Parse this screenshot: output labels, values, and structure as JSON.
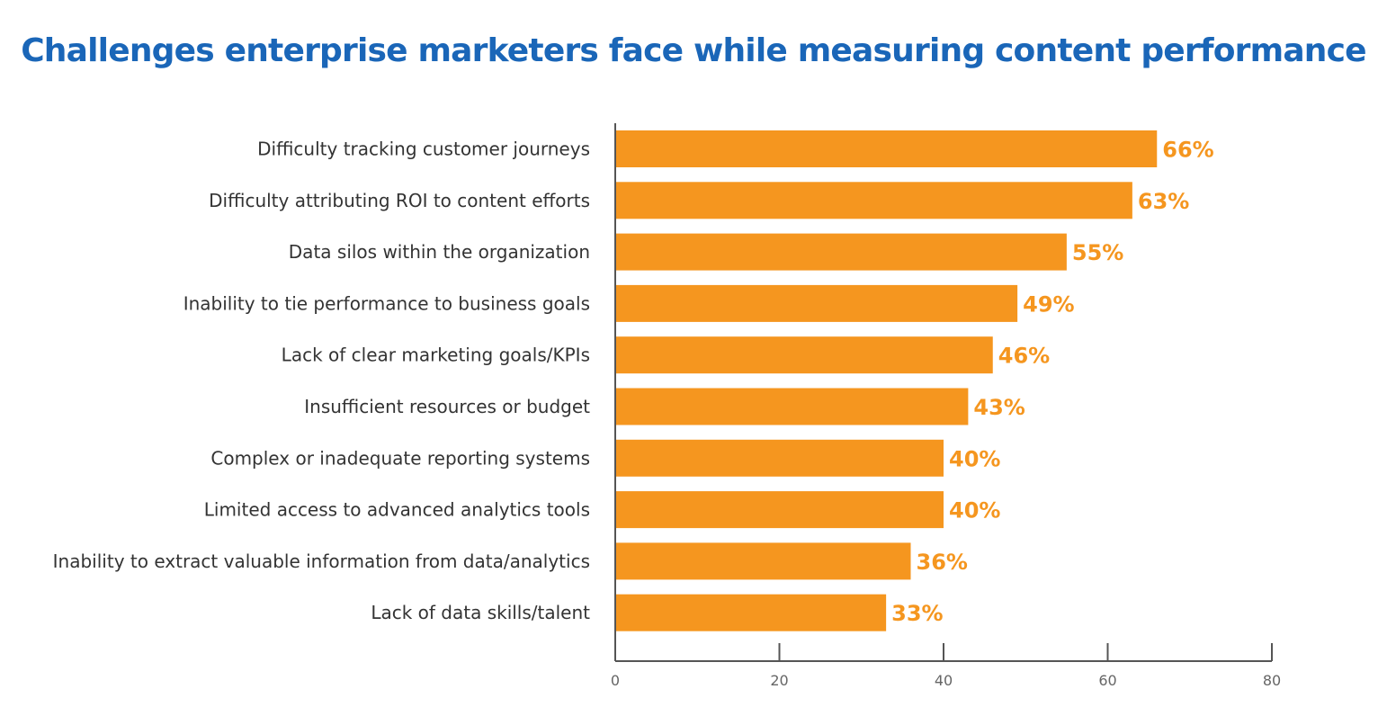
{
  "chart_data": {
    "type": "bar",
    "orientation": "horizontal",
    "title": "Challenges enterprise marketers face while measuring content performance",
    "categories": [
      "Difficulty tracking customer journeys",
      "Difficulty attributing ROI to content efforts",
      "Data silos within the organization",
      "Inability to tie performance to business goals",
      "Lack of clear marketing goals/KPIs",
      "Insufficient resources or budget",
      "Complex or inadequate reporting systems",
      "Limited access to advanced analytics tools",
      "Inability to extract valuable information from data/analytics",
      "Lack of data skills/talent"
    ],
    "values": [
      66,
      63,
      55,
      49,
      46,
      43,
      40,
      40,
      36,
      33
    ],
    "value_labels": [
      "66%",
      "63%",
      "55%",
      "49%",
      "46%",
      "43%",
      "40%",
      "40%",
      "36%",
      "33%"
    ],
    "xlim": [
      0,
      80
    ],
    "x_ticks": [
      0,
      20,
      40,
      60,
      80
    ],
    "x_tick_labels": [
      "0",
      "20",
      "40",
      "60",
      "80"
    ],
    "xlabel": "",
    "ylabel": "",
    "grid": false,
    "legend": "none",
    "colors": {
      "bar": "#f5961f",
      "value_label": "#f5961f",
      "title": "#1a66b8",
      "axis": "#555555"
    }
  }
}
